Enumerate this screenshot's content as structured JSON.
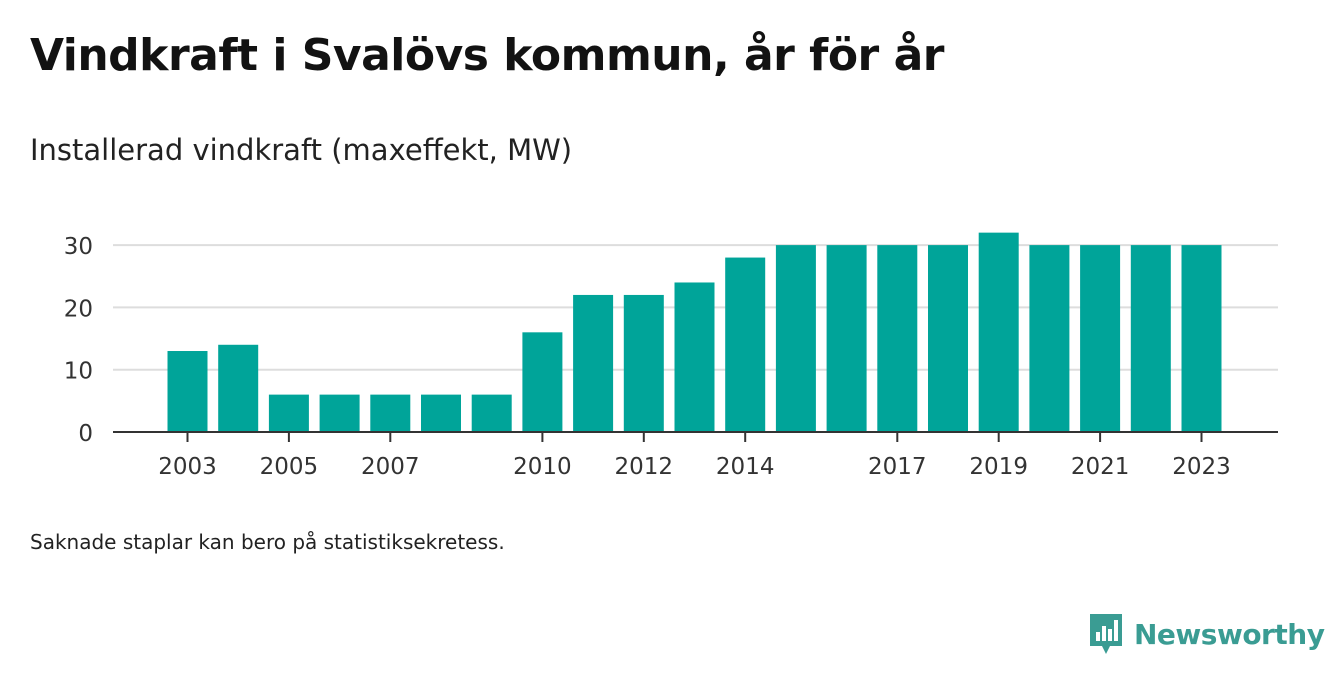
{
  "header": {
    "title": "Vindkraft i Svalövs kommun, år för år",
    "subtitle": "Installerad vindkraft (maxeffekt, MW)"
  },
  "footer": {
    "note": "Saknade staplar kan bero på statistiksekretess.",
    "brand": "Newsworthy"
  },
  "colors": {
    "bar": "#00a499",
    "grid": "#dddddd",
    "axis": "#333333",
    "brand": "#3a9c93"
  },
  "chart_data": {
    "type": "bar",
    "categories": [
      "2003",
      "2004",
      "2005",
      "2006",
      "2007",
      "2008",
      "2009",
      "2010",
      "2011",
      "2012",
      "2013",
      "2014",
      "2015",
      "2016",
      "2017",
      "2018",
      "2019",
      "2020",
      "2021",
      "2022",
      "2023"
    ],
    "values": [
      13,
      14,
      6,
      6,
      6,
      6,
      6,
      16,
      22,
      22,
      24,
      28,
      30,
      30,
      30,
      30,
      32,
      30,
      30,
      30,
      30
    ],
    "tick_labels": [
      "2003",
      "2005",
      "2007",
      "2010",
      "2012",
      "2014",
      "2017",
      "2019",
      "2021",
      "2023"
    ],
    "yticks": [
      0,
      10,
      20,
      30
    ],
    "ylim": [
      0,
      32
    ],
    "grid": true
  }
}
